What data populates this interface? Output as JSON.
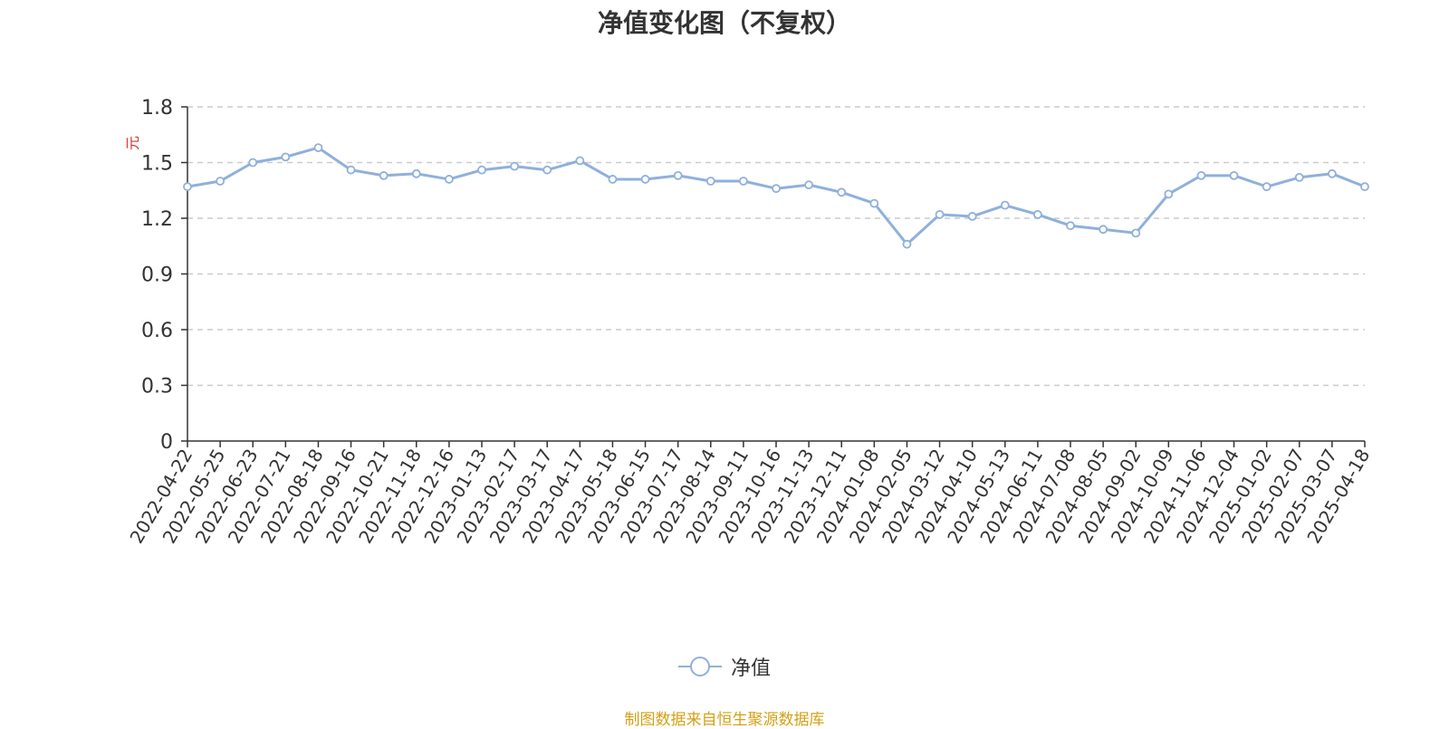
{
  "chart_data": {
    "type": "line",
    "title": "净值变化图（不复权）",
    "ylabel": "元",
    "ylim": [
      0,
      1.8
    ],
    "yticks": [
      "0",
      "0.3",
      "0.6",
      "0.9",
      "1.2",
      "1.5",
      "1.8"
    ],
    "x_tick_labels": [
      "2022-04-22",
      "2022-05-25",
      "2022-06-23",
      "2022-07-21",
      "2022-08-18",
      "2022-09-16",
      "2022-10-21",
      "2022-11-18",
      "2022-12-16",
      "2023-01-13",
      "2023-02-17",
      "2023-03-17",
      "2023-04-17",
      "2023-05-18",
      "2023-06-15",
      "2023-07-17",
      "2023-08-14",
      "2023-09-11",
      "2023-10-16",
      "2023-11-13",
      "2023-12-11",
      "2024-01-08",
      "2024-02-05",
      "2024-03-12",
      "2024-04-10",
      "2024-05-13",
      "2024-06-11",
      "2024-07-08",
      "2024-08-05",
      "2024-09-02",
      "2024-10-09",
      "2024-11-06",
      "2024-12-04",
      "2025-01-02",
      "2025-02-07",
      "2025-03-07",
      "2025-04-18"
    ],
    "grid": true,
    "legend_position": "bottom",
    "series": [
      {
        "name": "净值",
        "color": "#8fb0dc",
        "x": [
          "2022-04-22",
          "2022-05-25",
          "2022-06-23",
          "2022-07-21",
          "2022-08-18",
          "2022-09-16",
          "2022-10-21",
          "2022-11-18",
          "2022-12-16",
          "2023-01-13",
          "2023-02-17",
          "2023-03-17",
          "2023-04-17",
          "2023-05-18",
          "2023-06-15",
          "2023-07-17",
          "2023-08-14",
          "2023-09-11",
          "2023-10-16",
          "2023-11-13",
          "2023-12-11",
          "2024-01-08",
          "2024-02-05",
          "2024-03-12",
          "2024-04-10",
          "2024-05-13",
          "2024-06-11",
          "2024-07-08",
          "2024-08-05",
          "2024-09-02",
          "2024-10-09",
          "2024-11-06",
          "2024-12-04",
          "2025-01-02",
          "2025-02-07",
          "2025-03-07",
          "2025-04-18"
        ],
        "values": [
          1.37,
          1.4,
          1.5,
          1.53,
          1.58,
          1.46,
          1.43,
          1.44,
          1.41,
          1.46,
          1.48,
          1.46,
          1.51,
          1.41,
          1.41,
          1.43,
          1.4,
          1.4,
          1.36,
          1.38,
          1.34,
          1.28,
          1.06,
          1.22,
          1.21,
          1.27,
          1.22,
          1.16,
          1.14,
          1.12,
          1.33,
          1.43,
          1.43,
          1.37,
          1.42,
          1.44,
          1.37
        ]
      }
    ]
  },
  "legend": {
    "label": "净值"
  },
  "source_note": "制图数据来自恒生聚源数据库"
}
